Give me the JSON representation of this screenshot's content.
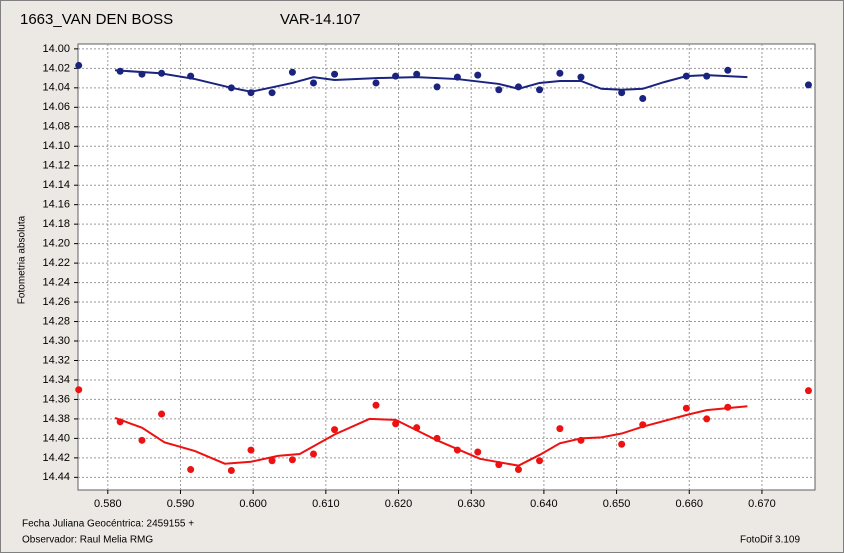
{
  "chart_data": {
    "type": "scatter",
    "title": "1663_VAN DEN BOSS",
    "subtitle": "VAR-14.107",
    "ylabel": "Fotometria absoluta",
    "xlabel": "Fecha Juliana Geocéntrica: 2459155 +",
    "observer": "Observador: Raul Melia RMG",
    "software": "FotoDif 3.109",
    "title_color": "#e8161b",
    "subtitle_color": "#1a237e",
    "xlim": [
      0.5759,
      0.6773
    ],
    "ylim": [
      13.995,
      14.453
    ],
    "y_inverted": true,
    "grid": true,
    "xticks": [
      {
        "value": 0.58,
        "label": "0.580"
      },
      {
        "value": 0.59,
        "label": "0.590"
      },
      {
        "value": 0.6,
        "label": "0.600"
      },
      {
        "value": 0.61,
        "label": "0.610"
      },
      {
        "value": 0.62,
        "label": "0.620"
      },
      {
        "value": 0.63,
        "label": "0.630"
      },
      {
        "value": 0.64,
        "label": "0.640"
      },
      {
        "value": 0.65,
        "label": "0.650"
      },
      {
        "value": 0.66,
        "label": "0.660"
      },
      {
        "value": 0.67,
        "label": "0.670"
      }
    ],
    "yticks": [
      {
        "value": 14.0,
        "label": "14.00"
      },
      {
        "value": 14.02,
        "label": "14.02"
      },
      {
        "value": 14.04,
        "label": "14.04"
      },
      {
        "value": 14.06,
        "label": "14.06"
      },
      {
        "value": 14.08,
        "label": "14.08"
      },
      {
        "value": 14.1,
        "label": "14.10"
      },
      {
        "value": 14.12,
        "label": "14.12"
      },
      {
        "value": 14.14,
        "label": "14.14"
      },
      {
        "value": 14.16,
        "label": "14.16"
      },
      {
        "value": 14.18,
        "label": "14.18"
      },
      {
        "value": 14.2,
        "label": "14.20"
      },
      {
        "value": 14.22,
        "label": "14.22"
      },
      {
        "value": 14.24,
        "label": "14.24"
      },
      {
        "value": 14.26,
        "label": "14.26"
      },
      {
        "value": 14.28,
        "label": "14.28"
      },
      {
        "value": 14.3,
        "label": "14.30"
      },
      {
        "value": 14.32,
        "label": "14.32"
      },
      {
        "value": 14.34,
        "label": "14.34"
      },
      {
        "value": 14.36,
        "label": "14.36"
      },
      {
        "value": 14.38,
        "label": "14.38"
      },
      {
        "value": 14.4,
        "label": "14.40"
      },
      {
        "value": 14.42,
        "label": "14.42"
      },
      {
        "value": 14.44,
        "label": "14.44"
      }
    ],
    "series": [
      {
        "mode": "markers",
        "color": "#1a237e",
        "x": [
          0.576,
          0.5817,
          0.5847,
          0.5874,
          0.5914,
          0.597,
          0.5997,
          0.6026,
          0.6054,
          0.6083,
          0.6112,
          0.6169,
          0.6196,
          0.6225,
          0.6253,
          0.6281,
          0.6309,
          0.6338,
          0.6365,
          0.6394,
          0.6422,
          0.6451,
          0.6507,
          0.6536,
          0.6596,
          0.6624,
          0.6653,
          0.6764
        ],
        "values": [
          14.017,
          14.023,
          14.026,
          14.025,
          14.028,
          14.04,
          14.045,
          14.045,
          14.024,
          14.035,
          14.026,
          14.035,
          14.028,
          14.026,
          14.039,
          14.029,
          14.027,
          14.042,
          14.039,
          14.042,
          14.025,
          14.029,
          14.045,
          14.051,
          14.028,
          14.028,
          14.022,
          14.037
        ]
      },
      {
        "mode": "line",
        "color": "#1a237e",
        "x": [
          0.581,
          0.5872,
          0.592,
          0.597,
          0.5997,
          0.6023,
          0.6054,
          0.6083,
          0.6112,
          0.6169,
          0.6225,
          0.6281,
          0.6338,
          0.6365,
          0.6394,
          0.6422,
          0.6451,
          0.6479,
          0.6507,
          0.6536,
          0.6566,
          0.6596,
          0.6624,
          0.668
        ],
        "values": [
          14.022,
          14.025,
          14.031,
          14.04,
          14.044,
          14.04,
          14.035,
          14.029,
          14.032,
          14.03,
          14.029,
          14.031,
          14.036,
          14.041,
          14.035,
          14.033,
          14.033,
          14.041,
          14.042,
          14.041,
          14.034,
          14.028,
          14.027,
          14.029
        ]
      },
      {
        "mode": "markers",
        "color": "#ee1111",
        "x": [
          0.576,
          0.5817,
          0.5847,
          0.5874,
          0.5914,
          0.597,
          0.5997,
          0.6026,
          0.6054,
          0.6083,
          0.6112,
          0.6169,
          0.6196,
          0.6225,
          0.6253,
          0.6281,
          0.6309,
          0.6338,
          0.6365,
          0.6394,
          0.6422,
          0.6451,
          0.6507,
          0.6536,
          0.6596,
          0.6624,
          0.6653,
          0.6764
        ],
        "values": [
          14.35,
          14.383,
          14.402,
          14.375,
          14.432,
          14.433,
          14.412,
          14.423,
          14.422,
          14.416,
          14.391,
          14.366,
          14.385,
          14.389,
          14.4,
          14.412,
          14.414,
          14.427,
          14.432,
          14.423,
          14.39,
          14.402,
          14.406,
          14.386,
          14.369,
          14.38,
          14.368,
          14.351
        ]
      },
      {
        "mode": "line",
        "color": "#ee1111",
        "x": [
          0.581,
          0.5847,
          0.5878,
          0.592,
          0.5961,
          0.5997,
          0.6034,
          0.6064,
          0.6112,
          0.616,
          0.6196,
          0.6253,
          0.6312,
          0.6365,
          0.6394,
          0.6422,
          0.6451,
          0.6479,
          0.6507,
          0.6536,
          0.6596,
          0.6624,
          0.668
        ],
        "values": [
          14.379,
          14.389,
          14.404,
          14.413,
          14.426,
          14.424,
          14.418,
          14.416,
          14.396,
          14.38,
          14.381,
          14.402,
          14.421,
          14.428,
          14.417,
          14.405,
          14.4,
          14.399,
          14.395,
          14.388,
          14.376,
          14.371,
          14.367
        ]
      }
    ]
  }
}
